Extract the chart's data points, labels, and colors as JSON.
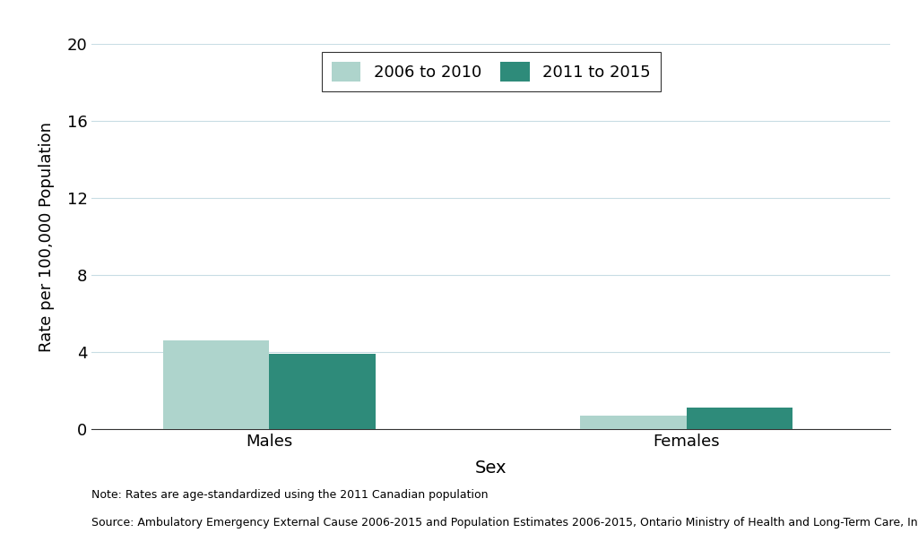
{
  "categories": [
    "Males",
    "Females"
  ],
  "values_2006_2010": [
    4.6,
    0.7
  ],
  "values_2011_2015": [
    3.9,
    1.1
  ],
  "color_2006_2010": "#aed4cc",
  "color_2011_2015": "#2e8b7a",
  "ylabel": "Rate per 100,000 Population",
  "xlabel": "Sex",
  "ylim": [
    0,
    20
  ],
  "yticks": [
    0,
    4,
    8,
    12,
    16,
    20
  ],
  "legend_labels": [
    "2006 to 2010",
    "2011 to 2015"
  ],
  "bar_width": 0.12,
  "group_positions": [
    0.25,
    0.72
  ],
  "xlim": [
    0.05,
    0.95
  ],
  "note_line1": "Note: Rates are age-standardized using the 2011 Canadian population",
  "note_line2": "Source: Ambulatory Emergency External Cause 2006-2015 and Population Estimates 2006-2015, Ontario Ministry of Health and Long-Term Care, IntelliHEALTH Ontario",
  "background_color": "#ffffff",
  "grid_color": "#c8dde4"
}
